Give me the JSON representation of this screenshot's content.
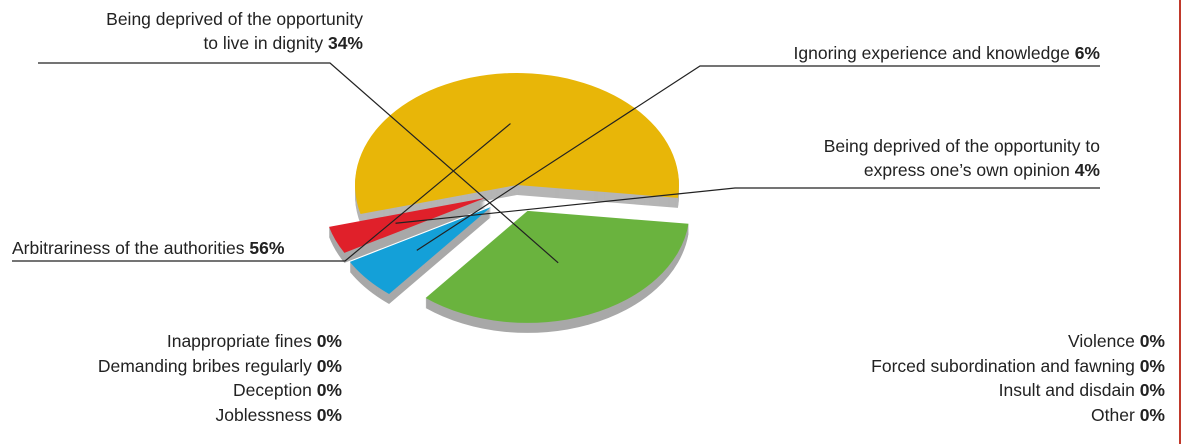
{
  "chart_data": {
    "type": "pie",
    "slices": [
      {
        "label": "Arbitrariness of the authorities",
        "value": 56,
        "value_label": "56%",
        "color": "#e8b608",
        "shade": "#b5b5b5"
      },
      {
        "label": "Being deprived of the opportunity to live in dignity",
        "label_lines": [
          "Being deprived of the opportunity",
          "to live in dignity"
        ],
        "value": 34,
        "value_label": "34%",
        "color": "#6ab33e",
        "shade": "#a8a8a8"
      },
      {
        "label": "Ignoring experience and knowledge",
        "value": 6,
        "value_label": "6%",
        "color": "#14a0d8",
        "shade": "#a8a8a8"
      },
      {
        "label": "Being deprived of the opportunity to express one’s own opinion",
        "label_lines": [
          "Being deprived of the opportunity to",
          "express one’s own opinion"
        ],
        "value": 4,
        "value_label": "4%",
        "color": "#e0202a",
        "shade": "#a8a8a8"
      }
    ],
    "zero_items_left": [
      {
        "label": "Inappropriate fines",
        "value_label": "0%"
      },
      {
        "label": "Demanding bribes regularly",
        "value_label": "0%"
      },
      {
        "label": "Deception",
        "value_label": "0%"
      },
      {
        "label": "Joblessness",
        "value_label": "0%"
      }
    ],
    "zero_items_right": [
      {
        "label": "Violence",
        "value_label": "0%"
      },
      {
        "label": "Forced subordination and fawning",
        "value_label": "0%"
      },
      {
        "label": "Insult and disdain",
        "value_label": "0%"
      },
      {
        "label": "Other",
        "value_label": "0%"
      }
    ]
  },
  "colors": {
    "leader_line": "#222222",
    "frame_accent": "#c0392b"
  }
}
